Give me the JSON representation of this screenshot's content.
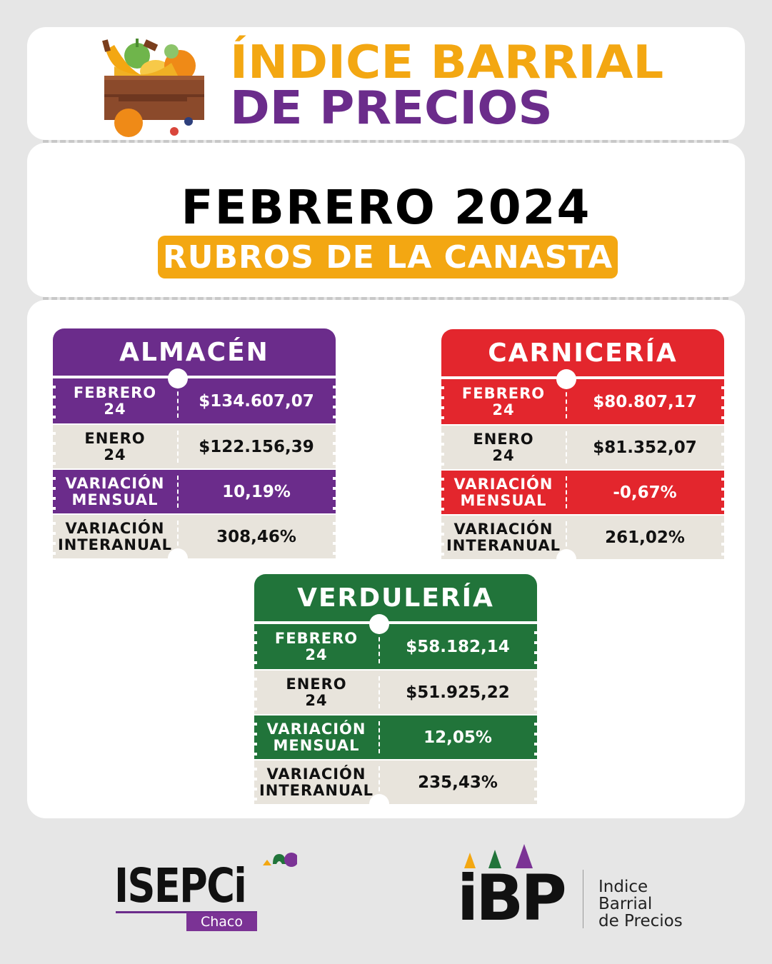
{
  "header": {
    "brand_line1": "ÍNDICE BARRIAL",
    "brand_line2": "DE PRECIOS",
    "icon": "fruit-crate-icon"
  },
  "title": {
    "month_year": "FEBRERO 2024",
    "subtitle": "RUBROS DE LA CANASTA"
  },
  "colors": {
    "orange": "#f3a712",
    "purple": "#6b2c8b",
    "red": "#e3262d",
    "green": "#21743a",
    "light_row": "#e8e4dc",
    "background": "#e6e6e6"
  },
  "cards": [
    {
      "name": "ALMACÉN",
      "rows": [
        {
          "label": "FEBRERO\n24",
          "value": "$134.607,07"
        },
        {
          "label": "ENERO\n24",
          "value": "$122.156,39"
        },
        {
          "label": "VARIACIÓN\nMENSUAL",
          "value": "10,19%"
        },
        {
          "label": "VARIACIÓN\nINTERANUAL",
          "value": "308,46%"
        }
      ]
    },
    {
      "name": "CARNICERÍA",
      "rows": [
        {
          "label": "FEBRERO\n24",
          "value": "$80.807,17"
        },
        {
          "label": "ENERO\n24",
          "value": "$81.352,07"
        },
        {
          "label": "VARIACIÓN\nMENSUAL",
          "value": "-0,67%"
        },
        {
          "label": "VARIACIÓN\nINTERANUAL",
          "value": "261,02%"
        }
      ]
    },
    {
      "name": "VERDULERÍA",
      "rows": [
        {
          "label": "FEBRERO\n24",
          "value": "$58.182,14"
        },
        {
          "label": "ENERO\n24",
          "value": "$51.925,22"
        },
        {
          "label": "VARIACIÓN\nMENSUAL",
          "value": "12,05%"
        },
        {
          "label": "VARIACIÓN\nINTERANUAL",
          "value": "235,43%"
        }
      ]
    }
  ],
  "footer": {
    "isepci": {
      "name": "ISEPCi",
      "region": "Chaco"
    },
    "ibp": {
      "mark": "iBP",
      "desc_line1": "Indice",
      "desc_line2": "Barrial",
      "desc_line3": "de Precios"
    }
  }
}
